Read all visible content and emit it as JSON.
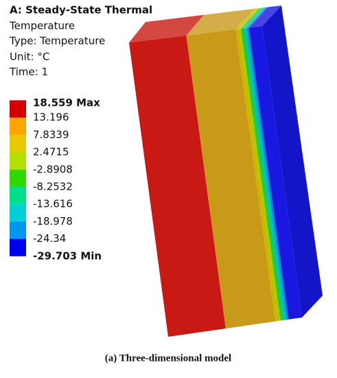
{
  "header": {
    "title": "A: Steady-State Thermal",
    "lines": [
      "Temperature",
      "Type: Temperature",
      "Unit: °C",
      "Time: 1"
    ]
  },
  "legend": {
    "labels": [
      "18.559 Max",
      "13.196",
      "7.8339",
      "2.4715",
      "-2.8908",
      "-8.2532",
      "-13.616",
      "-18.978",
      "-24.34",
      "-29.703 Min"
    ]
  },
  "caption": "(a) Three-dimensional model"
}
